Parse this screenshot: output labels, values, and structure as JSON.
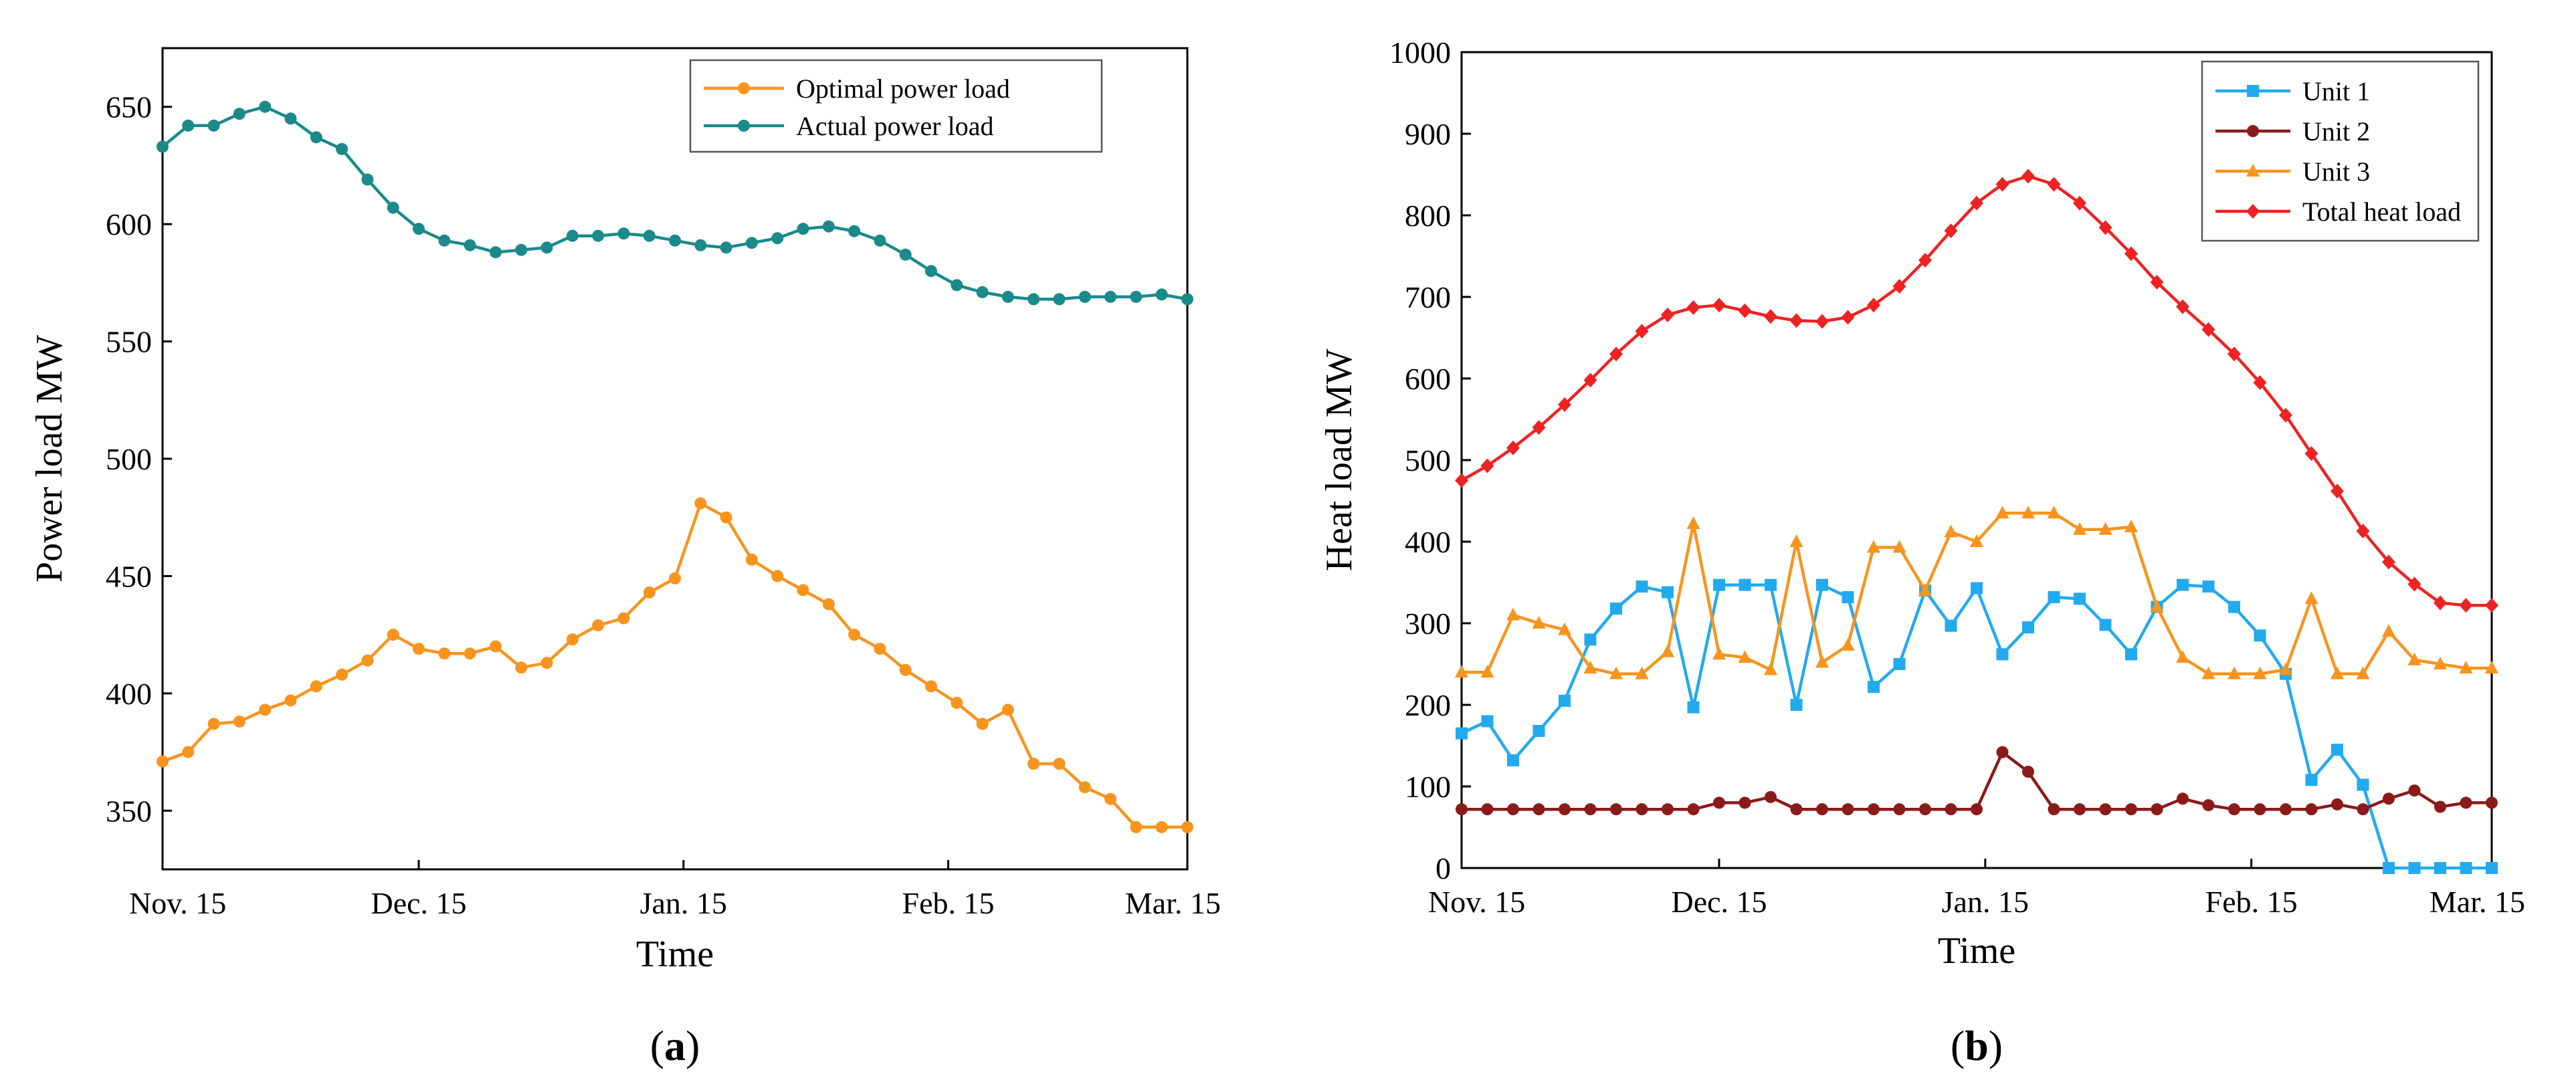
{
  "chart_data": [
    {
      "type": "line",
      "panel_label": "a",
      "title": "",
      "xlabel": "Time",
      "ylabel": "Power load MW",
      "xlim": [
        0,
        120
      ],
      "ylim": [
        325,
        675
      ],
      "x_ticks": [
        {
          "value": 0,
          "label": "Nov. 15"
        },
        {
          "value": 30,
          "label": "Dec. 15"
        },
        {
          "value": 61,
          "label": "Jan. 15"
        },
        {
          "value": 92,
          "label": "Feb. 15"
        },
        {
          "value": 120,
          "label": "Mar. 15"
        }
      ],
      "y_ticks": [
        350,
        400,
        450,
        500,
        550,
        600,
        650
      ],
      "legend_position": "top-right",
      "series": [
        {
          "name": "Optimal power load",
          "color": "#f7941d",
          "marker": "circle",
          "x": [
            0,
            3,
            6,
            9,
            12,
            15,
            18,
            21,
            24,
            27,
            30,
            33,
            36,
            39,
            42,
            45,
            48,
            51,
            54,
            57,
            60,
            63,
            66,
            69,
            72,
            75,
            78,
            81,
            84,
            87,
            90,
            93,
            96,
            99,
            102,
            105,
            108,
            111,
            114,
            117,
            120
          ],
          "values": [
            371,
            375,
            387,
            388,
            393,
            397,
            403,
            408,
            414,
            425,
            419,
            417,
            417,
            420,
            411,
            413,
            423,
            429,
            432,
            443,
            449,
            481,
            475,
            457,
            450,
            444,
            438,
            425,
            419,
            410,
            403,
            396,
            387,
            393,
            370,
            370,
            360,
            355,
            343,
            343,
            343
          ]
        },
        {
          "name": "Actual power load",
          "color": "#1a8a8a",
          "marker": "circle",
          "x": [
            0,
            3,
            6,
            9,
            12,
            15,
            18,
            21,
            24,
            27,
            30,
            33,
            36,
            39,
            42,
            45,
            48,
            51,
            54,
            57,
            60,
            63,
            66,
            69,
            72,
            75,
            78,
            81,
            84,
            87,
            90,
            93,
            96,
            99,
            102,
            105,
            108,
            111,
            114,
            117,
            120
          ],
          "values": [
            633,
            642,
            642,
            647,
            650,
            645,
            637,
            632,
            619,
            607,
            598,
            593,
            591,
            588,
            589,
            590,
            595,
            595,
            596,
            595,
            593,
            591,
            590,
            592,
            594,
            598,
            599,
            597,
            593,
            587,
            580,
            574,
            571,
            569,
            568,
            568,
            569,
            569,
            569,
            570,
            568
          ]
        }
      ]
    },
    {
      "type": "line",
      "panel_label": "b",
      "title": "",
      "xlabel": "Time",
      "ylabel": "Heat load MW",
      "xlim": [
        0,
        120
      ],
      "ylim": [
        0,
        1000
      ],
      "x_ticks": [
        {
          "value": 0,
          "label": "Nov. 15"
        },
        {
          "value": 30,
          "label": "Dec. 15"
        },
        {
          "value": 61,
          "label": "Jan. 15"
        },
        {
          "value": 92,
          "label": "Feb. 15"
        },
        {
          "value": 120,
          "label": "Mar. 15"
        }
      ],
      "y_ticks": [
        0,
        100,
        200,
        300,
        400,
        500,
        600,
        700,
        800,
        900,
        1000
      ],
      "legend_position": "top-right",
      "series": [
        {
          "name": "Unit 1",
          "color": "#22aaee",
          "marker": "square",
          "x": [
            0,
            3,
            6,
            9,
            12,
            15,
            18,
            21,
            24,
            27,
            30,
            33,
            36,
            39,
            42,
            45,
            48,
            51,
            54,
            57,
            60,
            63,
            66,
            69,
            72,
            75,
            78,
            81,
            84,
            87,
            90,
            93,
            96,
            99,
            102,
            105,
            108,
            111,
            114,
            117,
            120
          ],
          "values": [
            165,
            180,
            132,
            168,
            205,
            280,
            318,
            345,
            338,
            197,
            347,
            347,
            347,
            200,
            347,
            332,
            222,
            250,
            340,
            297,
            343,
            262,
            295,
            332,
            330,
            298,
            262,
            320,
            347,
            345,
            320,
            285,
            238,
            108,
            145,
            102,
            0,
            0,
            0,
            0,
            0
          ]
        },
        {
          "name": "Unit 2",
          "color": "#8b1a1a",
          "marker": "circle",
          "x": [
            0,
            3,
            6,
            9,
            12,
            15,
            18,
            21,
            24,
            27,
            30,
            33,
            36,
            39,
            42,
            45,
            48,
            51,
            54,
            57,
            60,
            63,
            66,
            69,
            72,
            75,
            78,
            81,
            84,
            87,
            90,
            93,
            96,
            99,
            102,
            105,
            108,
            111,
            114,
            117,
            120
          ],
          "values": [
            72,
            72,
            72,
            72,
            72,
            72,
            72,
            72,
            72,
            72,
            80,
            80,
            87,
            72,
            72,
            72,
            72,
            72,
            72,
            72,
            72,
            142,
            118,
            72,
            72,
            72,
            72,
            72,
            85,
            77,
            72,
            72,
            72,
            72,
            78,
            72,
            85,
            95,
            75,
            80,
            80
          ]
        },
        {
          "name": "Unit 3",
          "color": "#f7941d",
          "marker": "triangle",
          "x": [
            0,
            3,
            6,
            9,
            12,
            15,
            18,
            21,
            24,
            27,
            30,
            33,
            36,
            39,
            42,
            45,
            48,
            51,
            54,
            57,
            60,
            63,
            66,
            69,
            72,
            75,
            78,
            81,
            84,
            87,
            90,
            93,
            96,
            99,
            102,
            105,
            108,
            111,
            114,
            117,
            120
          ],
          "values": [
            240,
            240,
            310,
            300,
            292,
            245,
            238,
            238,
            265,
            422,
            262,
            258,
            243,
            400,
            252,
            273,
            393,
            393,
            340,
            412,
            400,
            435,
            435,
            435,
            415,
            415,
            418,
            320,
            258,
            238,
            238,
            238,
            243,
            330,
            238,
            238,
            290,
            255,
            250,
            245,
            245
          ]
        },
        {
          "name": "Total heat load",
          "color": "#ee2222",
          "marker": "diamond",
          "x": [
            0,
            3,
            6,
            9,
            12,
            15,
            18,
            21,
            24,
            27,
            30,
            33,
            36,
            39,
            42,
            45,
            48,
            51,
            54,
            57,
            60,
            63,
            66,
            69,
            72,
            75,
            78,
            81,
            84,
            87,
            90,
            93,
            96,
            99,
            102,
            105,
            108,
            111,
            114,
            117,
            120
          ],
          "values": [
            475,
            493,
            515,
            540,
            568,
            598,
            630,
            658,
            678,
            687,
            690,
            683,
            676,
            671,
            670,
            675,
            690,
            713,
            745,
            781,
            815,
            838,
            848,
            838,
            815,
            785,
            753,
            718,
            688,
            660,
            630,
            595,
            555,
            508,
            462,
            413,
            375,
            348,
            325,
            322,
            322
          ]
        }
      ]
    }
  ]
}
